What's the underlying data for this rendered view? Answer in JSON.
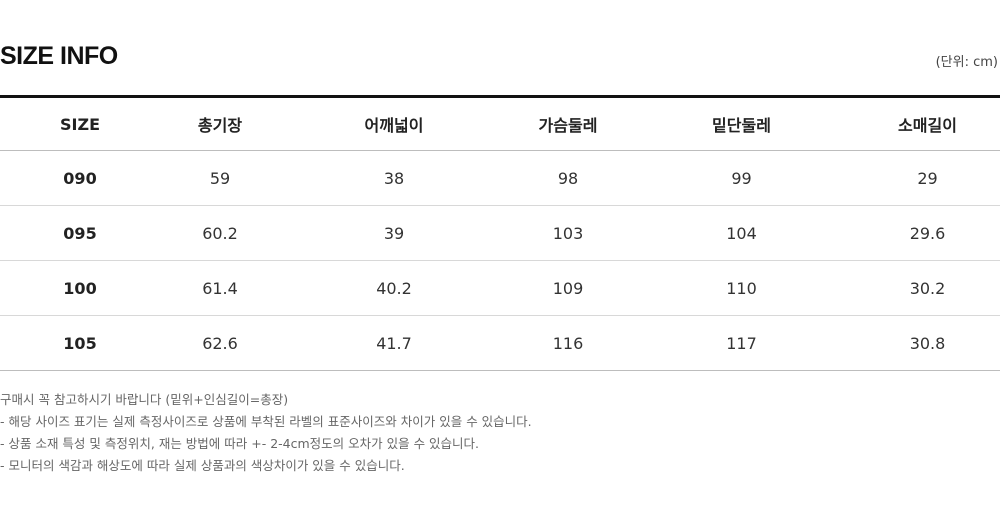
{
  "header": {
    "title": "SIZE INFO",
    "unit": "(단위: cm)"
  },
  "table": {
    "columns": [
      "SIZE",
      "총기장",
      "어깨넓이",
      "가슴둘레",
      "밑단둘레",
      "소매길이"
    ],
    "rows": [
      [
        "090",
        "59",
        "38",
        "98",
        "99",
        "29"
      ],
      [
        "095",
        "60.2",
        "39",
        "103",
        "104",
        "29.6"
      ],
      [
        "100",
        "61.4",
        "40.2",
        "109",
        "110",
        "30.2"
      ],
      [
        "105",
        "62.6",
        "41.7",
        "116",
        "117",
        "30.8"
      ]
    ]
  },
  "notes": [
    "구매시 꼭 참고하시기 바랍니다 (밑위+인심길이=총장)",
    "- 해당 사이즈 표기는 실제 측정사이즈로 상품에 부착된 라벨의 표준사이즈와 차이가 있을 수 있습니다.",
    "- 상품 소재 특성 및 측정위치, 재는 방법에 따라 +- 2-4cm정도의 오차가 있을 수 있습니다.",
    "- 모니터의 색감과 해상도에 따라 실제 상품과의 색상차이가 있을 수 있습니다."
  ]
}
